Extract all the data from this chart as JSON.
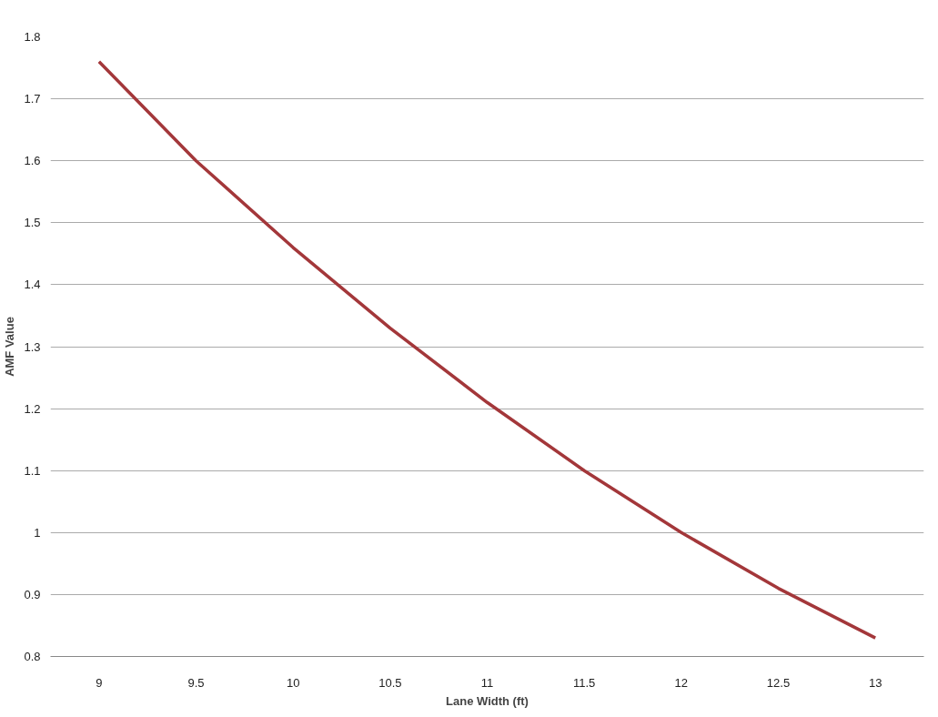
{
  "chart_data": {
    "type": "line",
    "xlabel": "Lane Width (ft)",
    "ylabel": "AMF Value",
    "categories": [
      "9",
      "9.5",
      "10",
      "10.5",
      "11",
      "11.5",
      "12",
      "12.5",
      "13"
    ],
    "series": [
      {
        "color": "#a3373a",
        "values": [
          1.76,
          1.6,
          1.46,
          1.33,
          1.21,
          1.1,
          1.0,
          0.91,
          0.83
        ]
      }
    ],
    "ylim": [
      0.8,
      1.8
    ],
    "yticks": [
      0.8,
      0.9,
      1,
      1.1,
      1.2,
      1.3,
      1.4,
      1.5,
      1.6,
      1.7,
      1.8
    ],
    "grid": "y",
    "marker": "none",
    "line_style": "solid"
  }
}
